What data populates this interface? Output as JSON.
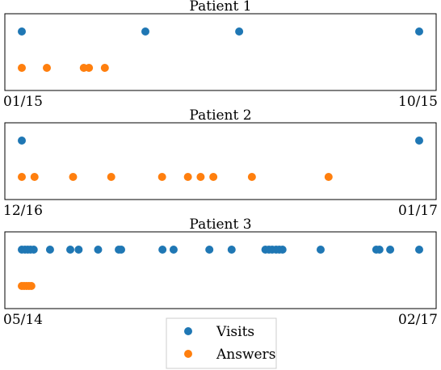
{
  "chart_data": [
    {
      "type": "scatter",
      "title": "Patient 1",
      "x_tick_labels": [
        "01/15",
        "10/15"
      ],
      "series": [
        {
          "name": "Visits",
          "color": "#1f77b4",
          "x": [
            0.0,
            0.311,
            0.547,
            1.0
          ]
        },
        {
          "name": "Answers",
          "color": "#ff7f0e",
          "x": [
            0.0,
            0.063,
            0.156,
            0.169,
            0.209
          ]
        }
      ]
    },
    {
      "type": "scatter",
      "title": "Patient 2",
      "x_tick_labels": [
        "12/16",
        "01/17"
      ],
      "series": [
        {
          "name": "Visits",
          "color": "#1f77b4",
          "x": [
            0.0,
            1.0
          ]
        },
        {
          "name": "Answers",
          "color": "#ff7f0e",
          "x": [
            0.0,
            0.032,
            0.129,
            0.225,
            0.353,
            0.418,
            0.45,
            0.482,
            0.579,
            0.772
          ]
        }
      ]
    },
    {
      "type": "scatter",
      "title": "Patient 3",
      "x_tick_labels": [
        "05/14",
        "02/17"
      ],
      "series": [
        {
          "name": "Visits",
          "color": "#1f77b4",
          "x": [
            0.0,
            0.008,
            0.015,
            0.022,
            0.03,
            0.071,
            0.122,
            0.143,
            0.192,
            0.244,
            0.25,
            0.354,
            0.382,
            0.472,
            0.528,
            0.613,
            0.622,
            0.63,
            0.64,
            0.648,
            0.656,
            0.752,
            0.892,
            0.9,
            0.927,
            1.0
          ]
        },
        {
          "name": "Answers",
          "color": "#ff7f0e",
          "x": [
            0.0,
            0.006,
            0.012,
            0.018,
            0.024
          ]
        }
      ]
    }
  ],
  "legend": {
    "placement": "bottom-center",
    "entries": [
      {
        "label": "Visits",
        "color": "#1f77b4"
      },
      {
        "label": "Answers",
        "color": "#ff7f0e"
      }
    ]
  }
}
